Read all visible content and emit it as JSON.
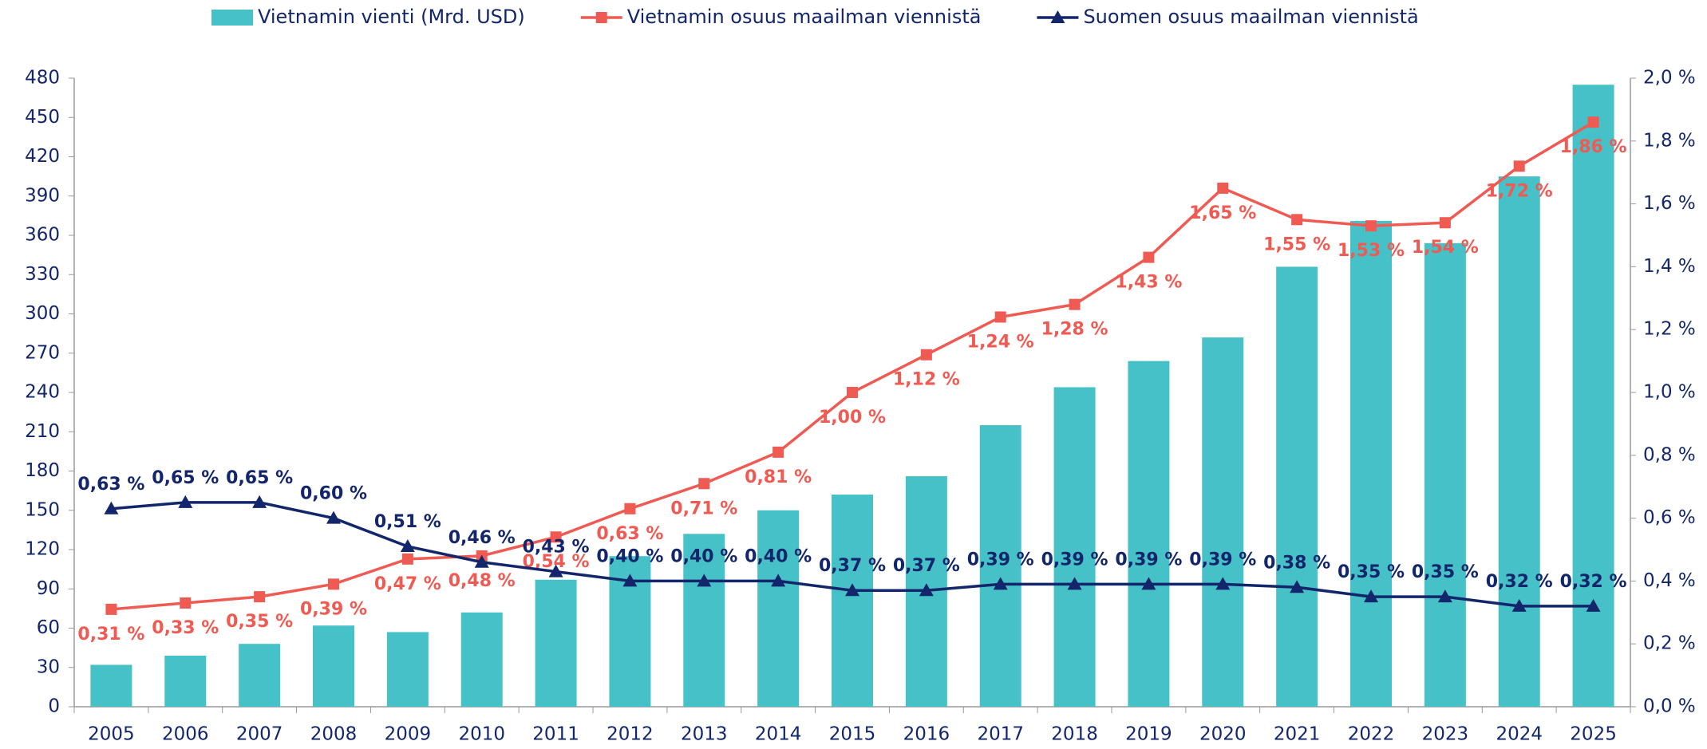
{
  "chart_data": {
    "type": "combo",
    "categories": [
      "2005",
      "2006",
      "2007",
      "2008",
      "2009",
      "2010",
      "2011",
      "2012",
      "2013",
      "2014",
      "2015",
      "2016",
      "2017",
      "2018",
      "2019",
      "2020",
      "2021",
      "2022",
      "2023",
      "2024",
      "2025"
    ],
    "series": [
      {
        "name": "Vietnamin vienti (Mrd. USD)",
        "type": "bar",
        "axis": "y",
        "color": "#47c1c8",
        "values": [
          32,
          39,
          48,
          62,
          57,
          72,
          97,
          115,
          132,
          150,
          162,
          176,
          215,
          244,
          264,
          282,
          336,
          371,
          354,
          405,
          475
        ]
      },
      {
        "name": "Vietnamin osuus maailman viennistä",
        "type": "line",
        "marker": "square",
        "axis": "y2",
        "color": "#ef5a52",
        "values": [
          0.31,
          0.33,
          0.35,
          0.39,
          0.47,
          0.48,
          0.54,
          0.63,
          0.71,
          0.81,
          1.0,
          1.12,
          1.24,
          1.28,
          1.43,
          1.65,
          1.55,
          1.53,
          1.54,
          1.72,
          1.86
        ],
        "value_labels": [
          "0,31 %",
          "0,33 %",
          "0,35 %",
          "0,39 %",
          "0,47 %",
          "0,48 %",
          "0,54 %",
          "0,63 %",
          "0,71 %",
          "0,81 %",
          "1,00 %",
          "1,12 %",
          "1,24 %",
          "1,28 %",
          "1,43 %",
          "1,65 %",
          "1,55 %",
          "1,53 %",
          "1,54 %",
          "1,72 %",
          "1,86 %"
        ]
      },
      {
        "name": "Suomen osuus maailman viennistä",
        "type": "line",
        "marker": "triangle",
        "axis": "y2",
        "color": "#13266b",
        "values": [
          0.63,
          0.65,
          0.65,
          0.6,
          0.51,
          0.46,
          0.43,
          0.4,
          0.4,
          0.4,
          0.37,
          0.37,
          0.39,
          0.39,
          0.39,
          0.39,
          0.38,
          0.35,
          0.35,
          0.32,
          0.32
        ],
        "value_labels": [
          "0,63 %",
          "0,65 %",
          "0,65 %",
          "0,60 %",
          "0,51 %",
          "0,46 %",
          "0,43 %",
          "0,40 %",
          "0,40 %",
          "0,40 %",
          "0,37 %",
          "0,37 %",
          "0,39 %",
          "0,39 %",
          "0,39 %",
          "0,39 %",
          "0,38 %",
          "0,35 %",
          "0,35 %",
          "0,32 %",
          "0,32 %"
        ]
      }
    ],
    "ylim": [
      0,
      480
    ],
    "yticks": [
      0,
      30,
      60,
      90,
      120,
      150,
      180,
      210,
      240,
      270,
      300,
      330,
      360,
      390,
      420,
      450,
      480
    ],
    "y2lim": [
      0,
      2.0
    ],
    "y2ticks": [
      {
        "value": 0,
        "label": "0,0 %"
      },
      {
        "value": 0.2,
        "label": "0,2 %"
      },
      {
        "value": 0.4,
        "label": "0,4 %"
      },
      {
        "value": 0.6,
        "label": "0,6 %"
      },
      {
        "value": 0.8,
        "label": "0,8 %"
      },
      {
        "value": 1.0,
        "label": "1,0 %"
      },
      {
        "value": 1.2,
        "label": "1,2 %"
      },
      {
        "value": 1.4,
        "label": "1,4 %"
      },
      {
        "value": 1.6,
        "label": "1,6 %"
      },
      {
        "value": 1.8,
        "label": "1,8 %"
      },
      {
        "value": 2.0,
        "label": "2,0 %"
      }
    ],
    "legend": "top"
  }
}
